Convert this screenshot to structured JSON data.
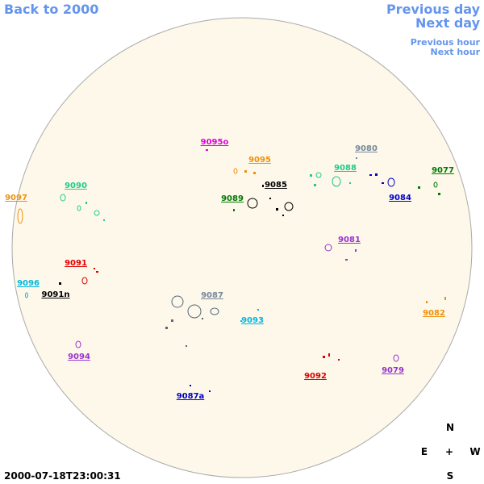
{
  "nav": {
    "back": "Back to 2000",
    "previous_day": "Previous day",
    "next_day": "Next day",
    "previous_hour": "Previous hour",
    "next_hour": "Next hour"
  },
  "regions": [
    {
      "label": "9095o",
      "color": "#e000e0"
    },
    {
      "label": "9095",
      "color": "#f0900a"
    },
    {
      "label": "9080",
      "color": "#778899"
    },
    {
      "label": "9077",
      "color": "#007a00"
    },
    {
      "label": "9088",
      "color": "#1fcc88"
    },
    {
      "label": "9085",
      "color": "#000000"
    },
    {
      "label": "9084",
      "color": "#0000c8"
    },
    {
      "label": "9090",
      "color": "#1fcc88"
    },
    {
      "label": "9089",
      "color": "#007a00"
    },
    {
      "label": "9097",
      "color": "#f0900a"
    },
    {
      "label": "9081",
      "color": "#9933cc"
    },
    {
      "label": "9091",
      "color": "#e00000"
    },
    {
      "label": "9096",
      "color": "#00b8e0"
    },
    {
      "label": "9091n",
      "color": "#000000"
    },
    {
      "label": "9087",
      "color": "#778899"
    },
    {
      "label": "9093",
      "color": "#00b8e0"
    },
    {
      "label": "9082",
      "color": "#f0900a"
    },
    {
      "label": "9094",
      "color": "#9933cc"
    },
    {
      "label": "9092",
      "color": "#e00000"
    },
    {
      "label": "9079",
      "color": "#9933cc"
    },
    {
      "label": "9087a",
      "color": "#0000c8"
    }
  ],
  "compass": {
    "north": "N",
    "east": "E",
    "center": "+",
    "west": "W",
    "south": "S"
  },
  "timestamp": "2000-07-18T23:00:31"
}
